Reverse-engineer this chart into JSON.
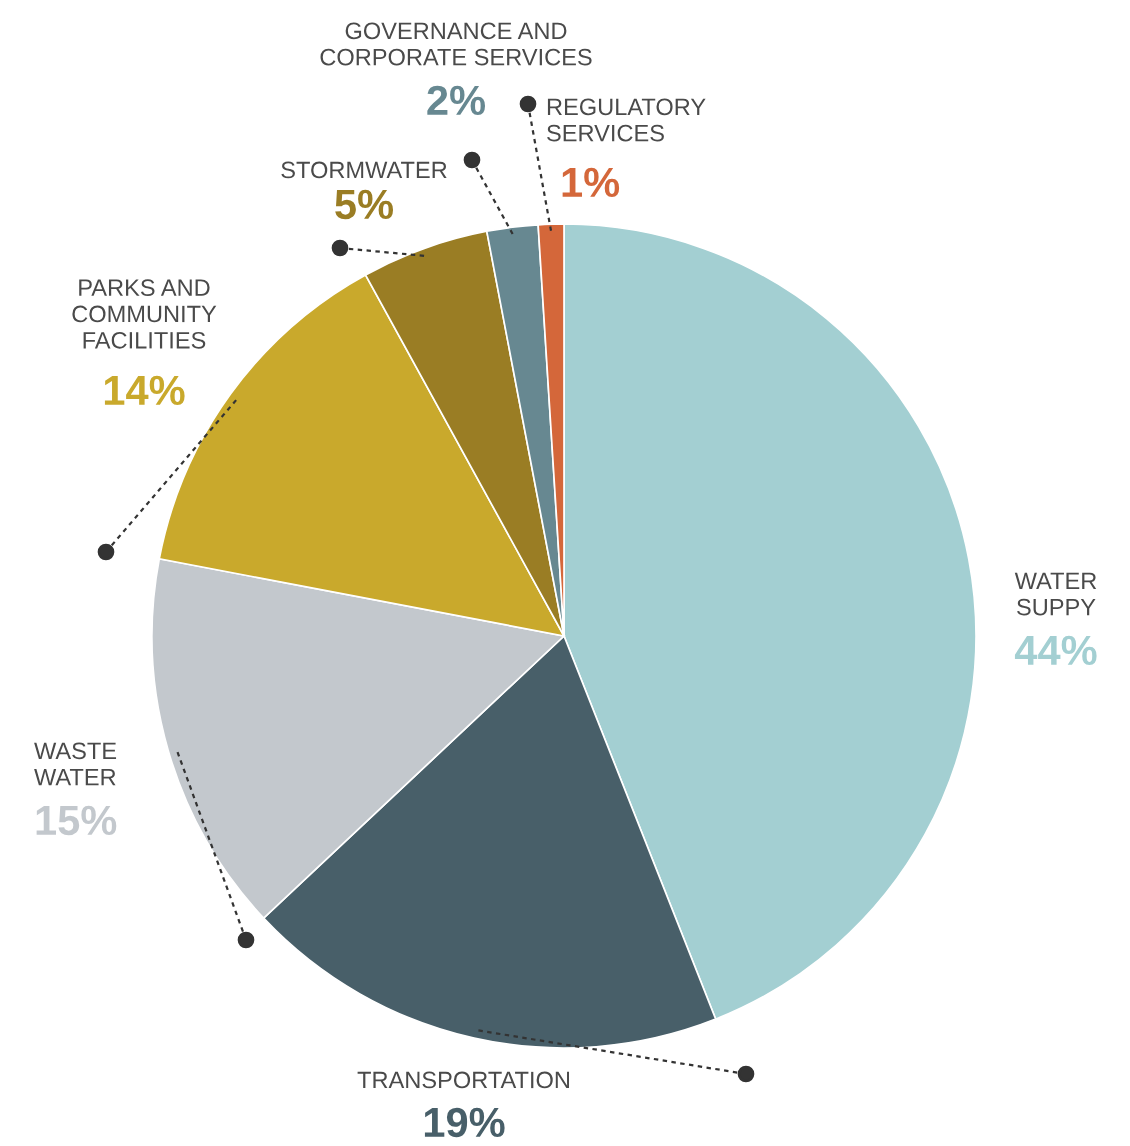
{
  "chart_data": {
    "type": "pie",
    "categories": [
      "WATER\nSUPPY",
      "TRANSPORTATION",
      "WASTE\nWATER",
      "PARKS AND\nCOMMUNITY\nFACILITIES",
      "STORMWATER",
      "GOVERNANCE AND\nCORPORATE SERVICES",
      "REGULATORY\nSERVICES"
    ],
    "values": [
      44,
      19,
      15,
      14,
      5,
      2,
      1
    ],
    "colors": [
      "#a3cfd2",
      "#485f69",
      "#c3c8cd",
      "#c9a92c",
      "#9a7d24",
      "#678891",
      "#d4673a"
    ],
    "value_labels": [
      "44%",
      "19%",
      "15%",
      "14%",
      "5%",
      "2%",
      "1%"
    ]
  }
}
